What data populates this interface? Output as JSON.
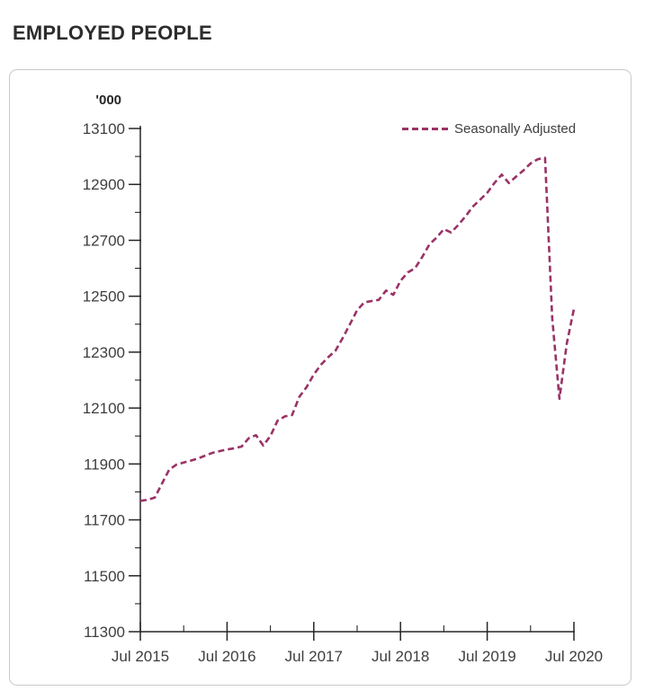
{
  "chart_data": {
    "type": "line",
    "title": "EMPLOYED PEOPLE",
    "ylabel": "'000",
    "xlabel": "",
    "legend_label": "Seasonally Adjusted",
    "legend_position": "top-right",
    "line_color": "#993366",
    "line_style": "dashed",
    "grid": false,
    "ylim": [
      11300,
      13100
    ],
    "y_ticks": [
      11300,
      11500,
      11700,
      11900,
      12100,
      12300,
      12500,
      12700,
      12900,
      13100
    ],
    "y_minor_tick_step": 100,
    "x_tick_labels": [
      "Jul 2015",
      "Jul 2016",
      "Jul 2017",
      "Jul 2018",
      "Jul 2019",
      "Jul 2020"
    ],
    "x": [
      "Jul 2015",
      "Aug 2015",
      "Sep 2015",
      "Oct 2015",
      "Nov 2015",
      "Dec 2015",
      "Jan 2016",
      "Feb 2016",
      "Mar 2016",
      "Apr 2016",
      "May 2016",
      "Jun 2016",
      "Jul 2016",
      "Aug 2016",
      "Sep 2016",
      "Oct 2016",
      "Nov 2016",
      "Dec 2016",
      "Jan 2017",
      "Feb 2017",
      "Mar 2017",
      "Apr 2017",
      "May 2017",
      "Jun 2017",
      "Jul 2017",
      "Aug 2017",
      "Sep 2017",
      "Oct 2017",
      "Nov 2017",
      "Dec 2017",
      "Jan 2018",
      "Feb 2018",
      "Mar 2018",
      "Apr 2018",
      "May 2018",
      "Jun 2018",
      "Jul 2018",
      "Aug 2018",
      "Sep 2018",
      "Oct 2018",
      "Nov 2018",
      "Dec 2018",
      "Jan 2019",
      "Feb 2019",
      "Mar 2019",
      "Apr 2019",
      "May 2019",
      "Jun 2019",
      "Jul 2019",
      "Aug 2019",
      "Sep 2019",
      "Oct 2019",
      "Nov 2019",
      "Dec 2019",
      "Jan 2020",
      "Feb 2020",
      "Mar 2020",
      "Apr 2020",
      "May 2020",
      "Jun 2020",
      "Jul 2020"
    ],
    "series": [
      {
        "name": "Seasonally Adjusted",
        "values": [
          11768,
          11772,
          11780,
          11830,
          11880,
          11898,
          11905,
          11912,
          11920,
          11930,
          11940,
          11946,
          11952,
          11956,
          11962,
          11992,
          12003,
          11966,
          12000,
          12055,
          12070,
          12075,
          12140,
          12175,
          12220,
          12255,
          12282,
          12305,
          12350,
          12400,
          12450,
          12478,
          12483,
          12487,
          12520,
          12505,
          12555,
          12585,
          12600,
          12640,
          12685,
          12710,
          12740,
          12728,
          12755,
          12786,
          12820,
          12845,
          12870,
          12905,
          12935,
          12905,
          12928,
          12950,
          12975,
          12990,
          12995,
          12420,
          12133,
          12330,
          12455
        ]
      }
    ]
  }
}
